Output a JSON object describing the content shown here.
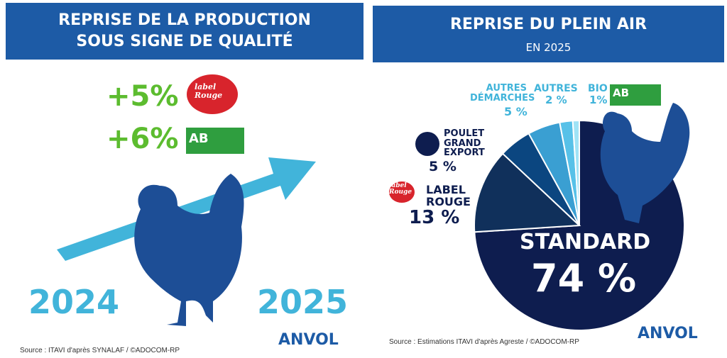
{
  "left": {
    "title": "REPRISE DE LA PRODUCTION\nSOUS SIGNE DE QUALITÉ",
    "label_rouge_change": "+5%",
    "bio_change": "+6%",
    "year_start": "2024",
    "year_end": "2025",
    "source": "Source : ITAVI d'après SYNALAF / ©ADOCOM-RP"
  },
  "logos": {
    "label_rouge": "label\nRouge",
    "ab": "AB",
    "anvol": "ANVOL"
  },
  "chart_data": {
    "type": "pie",
    "title": "REPRISE DU PLEIN AIR",
    "subtitle": "EN 2025",
    "categories": [
      "STANDARD",
      "LABEL\nROUGE",
      "POULET\nGRAND\nEXPORT",
      "AUTRES\nDÉMARCHES",
      "AUTRES",
      "BIO"
    ],
    "values": [
      74,
      13,
      5,
      5,
      2,
      1
    ],
    "value_labels": [
      "74 %",
      "13 %",
      "5 %",
      "5 %",
      "2 %",
      "1%"
    ],
    "colors": [
      "#0e1d4f",
      "#10305b",
      "#0b4680",
      "#3a9fd2",
      "#57c1e8",
      "#9fe3f6"
    ],
    "source": "Source : Estimations ITAVI d'après Agreste / ©ADOCOM-RP"
  }
}
